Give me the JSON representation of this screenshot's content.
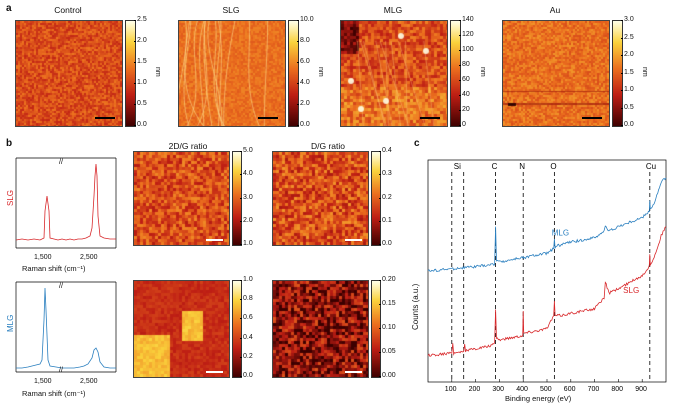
{
  "panel_a": {
    "label": "a",
    "maps": [
      {
        "title": "Control",
        "ticks": [
          "2.5",
          "2.0",
          "1.5",
          "1.0",
          "0.5",
          "0.0"
        ],
        "unit": "nm"
      },
      {
        "title": "SLG",
        "ticks": [
          "10.0",
          "8.0",
          "6.0",
          "4.0",
          "2.0",
          "0.0"
        ],
        "unit": "nm"
      },
      {
        "title": "MLG",
        "ticks": [
          "140",
          "120",
          "100",
          "80",
          "60",
          "40",
          "20",
          "0"
        ],
        "unit": "nm"
      },
      {
        "title": "Au",
        "ticks": [
          "3.0",
          "2.5",
          "2.0",
          "1.5",
          "1.0",
          "0.5",
          "0.0"
        ],
        "unit": "nm"
      }
    ]
  },
  "panel_b": {
    "label": "b",
    "row_labels": [
      "SLG",
      "MLG"
    ],
    "raman_xlabel": "Raman shift (cm⁻¹)",
    "raman_ticks": [
      "1,500",
      "2,500"
    ],
    "map_titles": [
      "2D/G ratio",
      "D/G ratio"
    ],
    "cbars": {
      "slg_2dg": [
        "5.0",
        "4.0",
        "3.0",
        "2.0",
        "1.0"
      ],
      "slg_dg": [
        "0.4",
        "0.3",
        "0.2",
        "0.1",
        "0.0"
      ],
      "mlg_2dg": [
        "1.0",
        "0.8",
        "0.6",
        "0.4",
        "0.2",
        "0.0"
      ],
      "mlg_dg": [
        "0.20",
        "0.15",
        "0.10",
        "0.05",
        "0.00"
      ]
    }
  },
  "panel_c": {
    "label": "c",
    "xlabel": "Binding energy (eV)",
    "ylabel": "Counts (a.u.)",
    "element_labels": [
      "Si",
      "C",
      "N",
      "O",
      "Cu"
    ],
    "xticks": [
      "100",
      "200",
      "300",
      "400",
      "500",
      "600",
      "700",
      "800",
      "900"
    ],
    "series_labels": [
      "MLG",
      "SLG"
    ]
  },
  "colors": {
    "slg": "#d8282b",
    "mlg": "#2a7fbf"
  },
  "chart_data": [
    {
      "type": "line",
      "title": "",
      "xlabel": "Binding energy (eV)",
      "ylabel": "Counts (a.u.)",
      "xlim": [
        0,
        1000
      ],
      "series": [
        {
          "name": "MLG",
          "x": [
            0,
            100,
            200,
            280,
            284,
            288,
            300,
            350,
            398,
            400,
            402,
            450,
            500,
            528,
            531,
            534,
            560,
            600,
            650,
            700,
            740,
            745,
            760,
            800,
            850,
            900,
            930,
            932,
            934,
            950,
            980,
            1000
          ],
          "y": [
            0.5,
            0.51,
            0.52,
            0.53,
            0.7,
            0.55,
            0.54,
            0.55,
            0.56,
            0.57,
            0.56,
            0.57,
            0.58,
            0.6,
            0.64,
            0.61,
            0.62,
            0.63,
            0.64,
            0.65,
            0.68,
            0.7,
            0.68,
            0.7,
            0.72,
            0.74,
            0.77,
            0.82,
            0.78,
            0.8,
            0.9,
            0.92
          ]
        },
        {
          "name": "SLG",
          "x": [
            0,
            100,
            104,
            108,
            150,
            154,
            158,
            200,
            250,
            280,
            284,
            288,
            300,
            350,
            398,
            400,
            402,
            450,
            500,
            528,
            531,
            534,
            560,
            600,
            650,
            700,
            740,
            745,
            760,
            800,
            850,
            900,
            930,
            932,
            934,
            950,
            980,
            1000
          ],
          "y": [
            0.12,
            0.13,
            0.18,
            0.13,
            0.14,
            0.17,
            0.14,
            0.15,
            0.16,
            0.17,
            0.33,
            0.2,
            0.19,
            0.2,
            0.21,
            0.32,
            0.22,
            0.23,
            0.24,
            0.3,
            0.36,
            0.3,
            0.3,
            0.31,
            0.32,
            0.33,
            0.38,
            0.45,
            0.4,
            0.42,
            0.45,
            0.48,
            0.52,
            0.58,
            0.53,
            0.56,
            0.66,
            0.7
          ]
        }
      ]
    }
  ]
}
